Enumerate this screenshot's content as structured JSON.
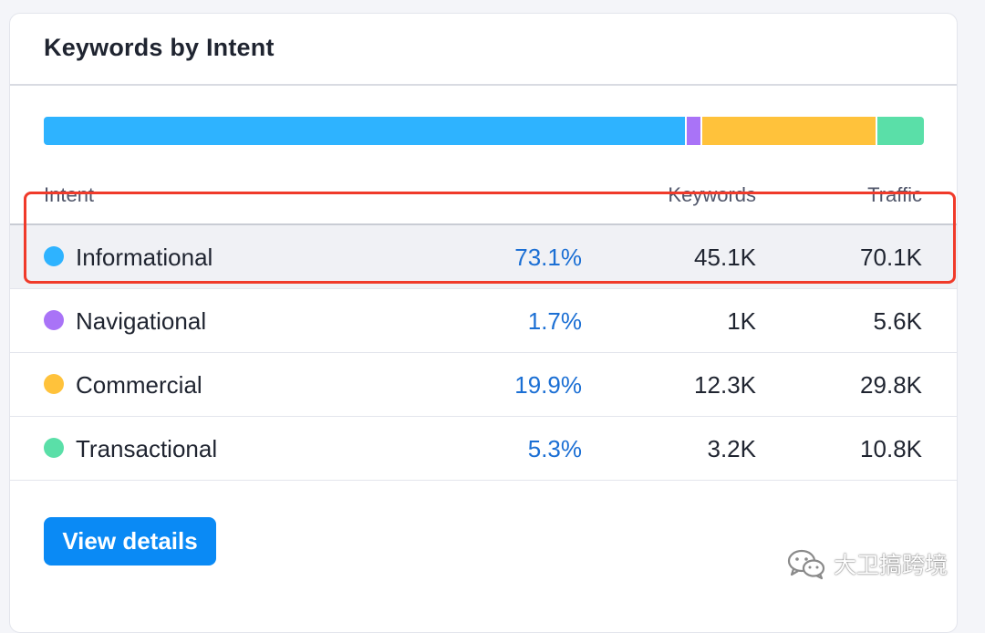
{
  "card": {
    "title": "Keywords by Intent"
  },
  "intent_bar": {
    "segments": [
      {
        "intent": "Informational",
        "share": 73.1,
        "color": "#2eb3ff"
      },
      {
        "intent": "Navigational",
        "share": 1.7,
        "color": "#a973f7"
      },
      {
        "intent": "Commercial",
        "share": 19.9,
        "color": "#ffc23b"
      },
      {
        "intent": "Transactional",
        "share": 5.3,
        "color": "#5adfa8"
      }
    ]
  },
  "table": {
    "headers": {
      "intent": "Intent",
      "keywords": "Keywords",
      "traffic": "Traffic"
    },
    "rows": [
      {
        "name": "Informational",
        "percent": "73.1%",
        "keywords": "45.1K",
        "traffic": "70.1K",
        "color": "#2eb3ff",
        "highlighted": true
      },
      {
        "name": "Navigational",
        "percent": "1.7%",
        "keywords": "1K",
        "traffic": "5.6K",
        "color": "#a973f7",
        "highlighted": false
      },
      {
        "name": "Commercial",
        "percent": "19.9%",
        "keywords": "12.3K",
        "traffic": "29.8K",
        "color": "#ffc23b",
        "highlighted": false
      },
      {
        "name": "Transactional",
        "percent": "5.3%",
        "keywords": "3.2K",
        "traffic": "10.8K",
        "color": "#5adfa8",
        "highlighted": false
      }
    ]
  },
  "actions": {
    "view_details_label": "View details"
  },
  "annotation": {
    "color": "#f03a2a"
  },
  "watermark": {
    "text": "大卫搞跨境",
    "icon": "wechat-icon"
  }
}
